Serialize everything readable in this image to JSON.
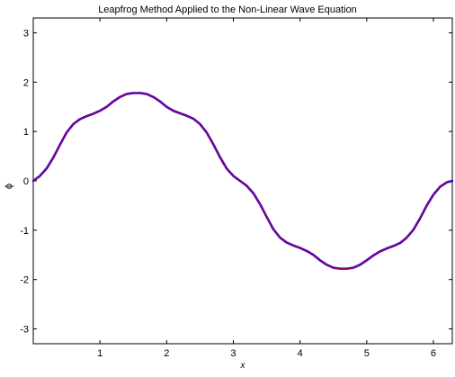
{
  "chart_data": {
    "type": "line",
    "title": "Leapfrog Method Applied to the Non-Linear Wave Equation",
    "xlabel": "x",
    "ylabel": "ϕ",
    "xlim": [
      0,
      6.2832
    ],
    "ylim": [
      -3.3,
      3.3
    ],
    "grid": false,
    "x_ticks": [
      {
        "value": 1,
        "label": "1"
      },
      {
        "value": 2,
        "label": "2"
      },
      {
        "value": 3,
        "label": "3"
      },
      {
        "value": 4,
        "label": "4"
      },
      {
        "value": 5,
        "label": "5"
      },
      {
        "value": 6,
        "label": "6"
      }
    ],
    "y_ticks": [
      {
        "value": 3,
        "label": "3"
      },
      {
        "value": 2,
        "label": "2"
      },
      {
        "value": 1,
        "label": "1"
      },
      {
        "value": 0,
        "label": "0"
      },
      {
        "value": -1,
        "label": "-1"
      },
      {
        "value": -2,
        "label": "-2"
      },
      {
        "value": -3,
        "label": "-3"
      }
    ],
    "series": [
      {
        "color": "#0000ff",
        "x": [
          0,
          0.1,
          0.2,
          0.3,
          0.4,
          0.5,
          0.6,
          0.7,
          0.8,
          0.9,
          1.0,
          1.1,
          1.2,
          1.3,
          1.4,
          1.5,
          1.6,
          1.7,
          1.8,
          1.9,
          2.0,
          2.1,
          2.2,
          2.3,
          2.4,
          2.5,
          2.6,
          2.7,
          2.8,
          2.9,
          3.0,
          3.1,
          3.2,
          3.3,
          3.4,
          3.5,
          3.6,
          3.7,
          3.8,
          3.9,
          4.0,
          4.1,
          4.2,
          4.3,
          4.4,
          4.5,
          4.6,
          4.7,
          4.8,
          4.9,
          5.0,
          5.1,
          5.2,
          5.3,
          5.4,
          5.5,
          5.6,
          5.7,
          5.8,
          5.9,
          6.0,
          6.1,
          6.2,
          6.2832
        ],
        "y": [
          0.0,
          0.1,
          0.25,
          0.47,
          0.73,
          0.98,
          1.15,
          1.25,
          1.31,
          1.36,
          1.42,
          1.5,
          1.61,
          1.7,
          1.76,
          1.78,
          1.78,
          1.76,
          1.7,
          1.61,
          1.5,
          1.42,
          1.37,
          1.32,
          1.26,
          1.15,
          0.98,
          0.74,
          0.48,
          0.25,
          0.1,
          0.0,
          -0.1,
          -0.25,
          -0.47,
          -0.73,
          -0.98,
          -1.15,
          -1.25,
          -1.31,
          -1.36,
          -1.42,
          -1.5,
          -1.61,
          -1.7,
          -1.76,
          -1.78,
          -1.78,
          -1.76,
          -1.7,
          -1.61,
          -1.51,
          -1.43,
          -1.37,
          -1.32,
          -1.26,
          -1.15,
          -0.99,
          -0.76,
          -0.5,
          -0.28,
          -0.12,
          -0.03,
          0.0
        ]
      },
      {
        "color": "#ff0000",
        "x": [
          0,
          0.1,
          0.2,
          0.3,
          0.4,
          0.5,
          0.6,
          0.7,
          0.8,
          0.9,
          1.0,
          1.1,
          1.2,
          1.3,
          1.4,
          1.5,
          1.6,
          1.7,
          1.8,
          1.9,
          2.0,
          2.1,
          2.2,
          2.3,
          2.4,
          2.5,
          2.6,
          2.7,
          2.8,
          2.9,
          3.0,
          3.1,
          3.2,
          3.3,
          3.4,
          3.5,
          3.6,
          3.7,
          3.8,
          3.9,
          4.0,
          4.1,
          4.2,
          4.3,
          4.4,
          4.5,
          4.6,
          4.7,
          4.8,
          4.9,
          5.0,
          5.1,
          5.2,
          5.3,
          5.4,
          5.5,
          5.6,
          5.7,
          5.8,
          5.9,
          6.0,
          6.1,
          6.2,
          6.2832
        ],
        "y": [
          0.0,
          0.1,
          0.25,
          0.47,
          0.73,
          0.98,
          1.15,
          1.25,
          1.31,
          1.36,
          1.42,
          1.5,
          1.61,
          1.7,
          1.76,
          1.78,
          1.78,
          1.76,
          1.7,
          1.61,
          1.5,
          1.42,
          1.37,
          1.32,
          1.26,
          1.15,
          0.98,
          0.74,
          0.48,
          0.25,
          0.1,
          0.0,
          -0.1,
          -0.25,
          -0.47,
          -0.73,
          -0.98,
          -1.15,
          -1.25,
          -1.31,
          -1.36,
          -1.42,
          -1.5,
          -1.61,
          -1.7,
          -1.76,
          -1.78,
          -1.78,
          -1.76,
          -1.7,
          -1.61,
          -1.51,
          -1.43,
          -1.37,
          -1.32,
          -1.26,
          -1.15,
          -0.99,
          -0.76,
          -0.5,
          -0.28,
          -0.12,
          -0.03,
          0.0
        ]
      }
    ]
  }
}
